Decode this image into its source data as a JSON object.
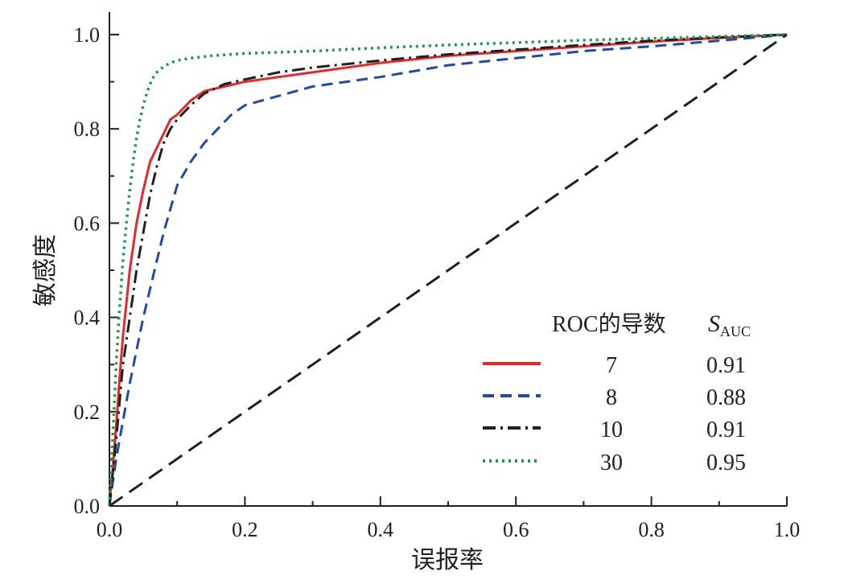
{
  "chart_data": {
    "type": "line",
    "title": "",
    "xlabel": "误报率",
    "ylabel": "敏感度",
    "xlim": [
      0,
      1
    ],
    "ylim": [
      0,
      1
    ],
    "x_ticks": [
      "0.0",
      "0.2",
      "0.4",
      "0.6",
      "0.8",
      "1.0"
    ],
    "y_ticks": [
      "0.0",
      "0.2",
      "0.4",
      "0.6",
      "0.8",
      "1.0"
    ],
    "grid": false,
    "legend": {
      "position": "bottom-right",
      "header_derivative": "ROC的导数",
      "header_s": "S",
      "header_s_subscript": "AUC"
    },
    "series": [
      {
        "name": "7",
        "auc": "0.91",
        "color": "#e8272a",
        "style": "solid",
        "x": [
          0,
          0.005,
          0.01,
          0.015,
          0.02,
          0.025,
          0.03,
          0.035,
          0.04,
          0.05,
          0.06,
          0.07,
          0.08,
          0.09,
          0.1,
          0.12,
          0.14,
          0.17,
          0.2,
          0.25,
          0.3,
          0.4,
          0.5,
          0.6,
          0.7,
          0.8,
          0.9,
          1.0
        ],
        "y": [
          0,
          0.08,
          0.17,
          0.27,
          0.36,
          0.43,
          0.5,
          0.55,
          0.6,
          0.67,
          0.73,
          0.76,
          0.79,
          0.82,
          0.83,
          0.86,
          0.88,
          0.89,
          0.9,
          0.91,
          0.92,
          0.94,
          0.955,
          0.965,
          0.975,
          0.985,
          0.993,
          1.0
        ]
      },
      {
        "name": "8",
        "auc": "0.88",
        "color": "#1f4aa8",
        "style": "dashed",
        "x": [
          0,
          0.005,
          0.01,
          0.02,
          0.03,
          0.04,
          0.05,
          0.06,
          0.07,
          0.08,
          0.09,
          0.1,
          0.12,
          0.14,
          0.16,
          0.18,
          0.2,
          0.25,
          0.3,
          0.4,
          0.5,
          0.6,
          0.7,
          0.8,
          0.9,
          1.0
        ],
        "y": [
          0,
          0.05,
          0.1,
          0.18,
          0.26,
          0.33,
          0.4,
          0.46,
          0.52,
          0.58,
          0.63,
          0.68,
          0.73,
          0.77,
          0.8,
          0.83,
          0.85,
          0.87,
          0.89,
          0.91,
          0.935,
          0.95,
          0.965,
          0.975,
          0.987,
          1.0
        ]
      },
      {
        "name": "10",
        "auc": "0.91",
        "color": "#231f20",
        "style": "dashdot",
        "x": [
          0,
          0.005,
          0.01,
          0.015,
          0.02,
          0.03,
          0.04,
          0.05,
          0.06,
          0.07,
          0.08,
          0.09,
          0.1,
          0.12,
          0.14,
          0.17,
          0.2,
          0.25,
          0.3,
          0.4,
          0.5,
          0.6,
          0.7,
          0.8,
          0.9,
          1.0
        ],
        "y": [
          0,
          0.07,
          0.14,
          0.22,
          0.3,
          0.4,
          0.5,
          0.58,
          0.66,
          0.72,
          0.77,
          0.8,
          0.82,
          0.85,
          0.875,
          0.895,
          0.905,
          0.92,
          0.93,
          0.945,
          0.958,
          0.968,
          0.978,
          0.987,
          0.994,
          1.0
        ]
      },
      {
        "name": "30",
        "auc": "0.95",
        "color": "#1f9a47",
        "style": "dotted",
        "x": [
          0,
          0.005,
          0.01,
          0.015,
          0.02,
          0.025,
          0.03,
          0.035,
          0.04,
          0.045,
          0.05,
          0.055,
          0.06,
          0.065,
          0.07,
          0.08,
          0.09,
          0.1,
          0.12,
          0.15,
          0.2,
          0.3,
          0.4,
          0.5,
          0.6,
          0.7,
          0.8,
          0.9,
          1.0
        ],
        "y": [
          0,
          0.15,
          0.3,
          0.42,
          0.52,
          0.6,
          0.67,
          0.73,
          0.78,
          0.82,
          0.85,
          0.875,
          0.895,
          0.91,
          0.92,
          0.932,
          0.94,
          0.945,
          0.95,
          0.955,
          0.96,
          0.965,
          0.972,
          0.978,
          0.983,
          0.988,
          0.992,
          0.996,
          1.0
        ]
      },
      {
        "name": "",
        "auc": "",
        "color": "#231f20",
        "style": "longdash",
        "x": [
          0,
          1
        ],
        "y": [
          0,
          1
        ]
      }
    ]
  }
}
